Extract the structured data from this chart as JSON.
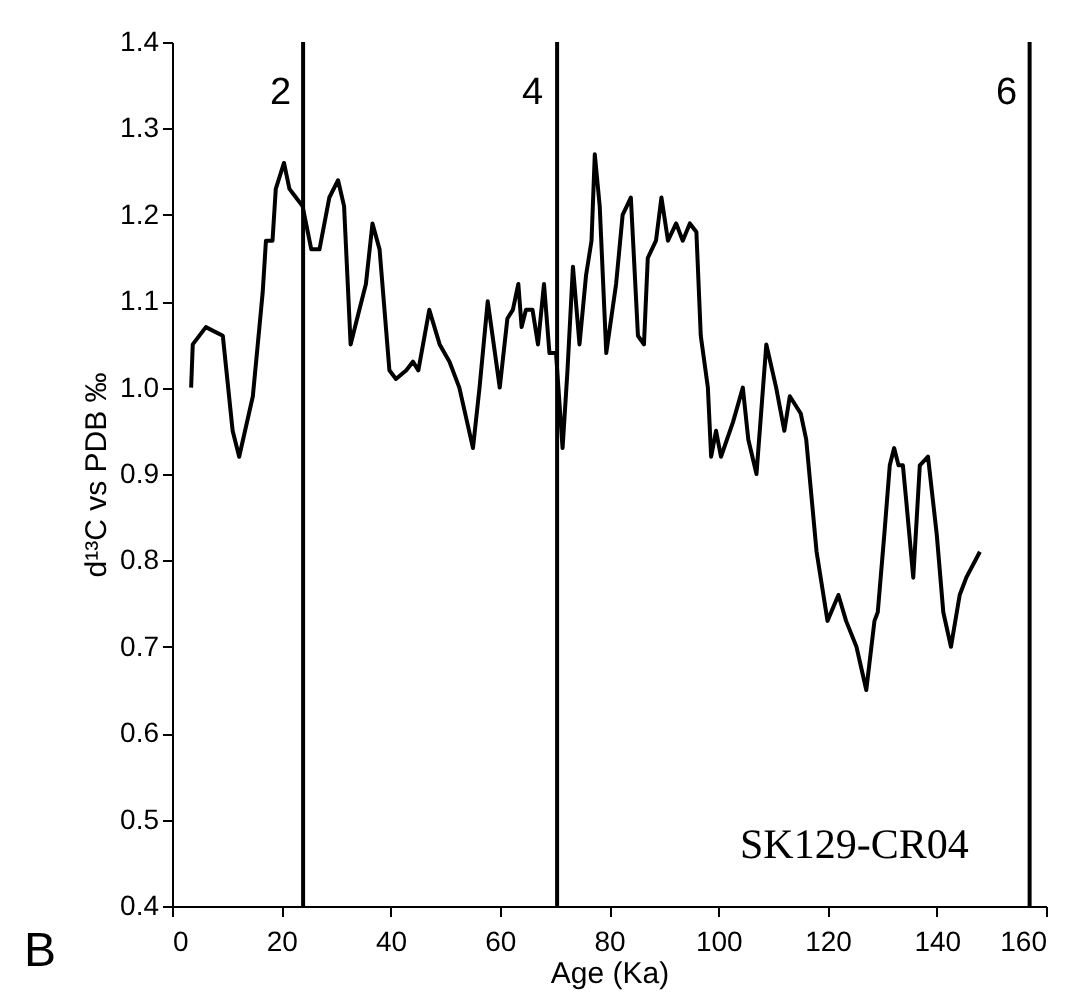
{
  "chart_data": {
    "type": "line",
    "xlabel": "Age (Ka)",
    "ylabel": "d¹³C vs PDB ‰",
    "x": [
      3.5,
      3.8,
      6.2,
      9.3,
      11.1,
      12.3,
      14.8,
      16.6,
      17.2,
      18.4,
      19.0,
      20.5,
      21.5,
      22.7,
      23.9,
      25.5,
      27.0,
      28.8,
      30.4,
      31.5,
      32.7,
      34.3,
      35.5,
      36.7,
      38.0,
      39.8,
      41.0,
      42.9,
      44.1,
      45.1,
      47.1,
      49.0,
      50.8,
      52.6,
      55.1,
      56.3,
      57.8,
      60.0,
      61.4,
      62.4,
      63.4,
      64.0,
      64.8,
      66.0,
      67.0,
      68.1,
      69.1,
      70.3,
      71.5,
      72.4,
      73.4,
      74.6,
      75.8,
      76.8,
      77.4,
      78.3,
      79.5,
      81.3,
      82.5,
      84.0,
      85.3,
      86.4,
      87.1,
      88.6,
      89.6,
      90.8,
      92.3,
      93.5,
      94.8,
      96.0,
      96.8,
      98.1,
      98.7,
      99.6,
      100.5,
      102.7,
      104.5,
      105.5,
      107.0,
      108.8,
      110.6,
      112.1,
      113.1,
      115.1,
      116.1,
      118.0,
      120.0,
      122.0,
      123.4,
      125.3,
      127.1,
      128.6,
      129.2,
      130.4,
      131.4,
      132.2,
      133.0,
      133.8,
      134.4,
      135.7,
      136.9,
      138.4,
      140.0,
      141.2,
      142.6,
      144.2,
      145.4,
      147.9
    ],
    "series": [
      {
        "color": "#000000",
        "values": [
          1.0,
          1.05,
          1.07,
          1.06,
          0.95,
          0.92,
          0.99,
          1.11,
          1.17,
          1.17,
          1.23,
          1.26,
          1.23,
          1.22,
          1.21,
          1.16,
          1.16,
          1.22,
          1.24,
          1.21,
          1.05,
          1.09,
          1.12,
          1.19,
          1.16,
          1.02,
          1.01,
          1.02,
          1.03,
          1.02,
          1.09,
          1.05,
          1.03,
          1.0,
          0.93,
          1.0,
          1.1,
          1.0,
          1.08,
          1.09,
          1.12,
          1.07,
          1.09,
          1.09,
          1.05,
          1.12,
          1.04,
          1.04,
          0.93,
          1.02,
          1.14,
          1.05,
          1.13,
          1.17,
          1.27,
          1.21,
          1.04,
          1.12,
          1.2,
          1.22,
          1.06,
          1.05,
          1.15,
          1.17,
          1.22,
          1.17,
          1.19,
          1.17,
          1.19,
          1.18,
          1.06,
          1.0,
          0.92,
          0.95,
          0.92,
          0.96,
          1.0,
          0.94,
          0.9,
          1.05,
          1.0,
          0.95,
          0.99,
          0.97,
          0.94,
          0.81,
          0.73,
          0.76,
          0.73,
          0.7,
          0.65,
          0.73,
          0.74,
          0.83,
          0.91,
          0.93,
          0.91,
          0.91,
          0.87,
          0.78,
          0.91,
          0.92,
          0.83,
          0.74,
          0.7,
          0.76,
          0.78,
          0.81
        ]
      }
    ],
    "xlim": [
      0,
      160
    ],
    "xticks": [
      0,
      20,
      40,
      60,
      80,
      100,
      120,
      140,
      160
    ],
    "ylim": [
      0.4,
      1.4
    ],
    "yticks": [
      {
        "value": 0.4,
        "label": "0.4"
      },
      {
        "value": 0.5,
        "label": "0.5"
      },
      {
        "value": 0.6,
        "label": "0.6"
      },
      {
        "value": 0.7,
        "label": "0.7"
      },
      {
        "value": 0.8,
        "label": "0.8"
      },
      {
        "value": 0.9,
        "label": "0.9"
      },
      {
        "value": 1,
        "label": "1.0"
      },
      {
        "value": 1.1,
        "label": "1.1"
      },
      {
        "value": 1.2,
        "label": "1.2"
      },
      {
        "value": 1.3,
        "label": "1.3"
      },
      {
        "value": 1.4,
        "label": "1.4"
      }
    ],
    "ref_lines": [
      {
        "axis": "x",
        "value": 24
      },
      {
        "axis": "x",
        "value": 70.5
      },
      {
        "axis": "x",
        "value": 157
      }
    ],
    "annotations": [
      "2",
      "4",
      "6",
      "SK129-CR04",
      "B"
    ],
    "grid": false,
    "marker": "none",
    "line_style": "solid"
  }
}
